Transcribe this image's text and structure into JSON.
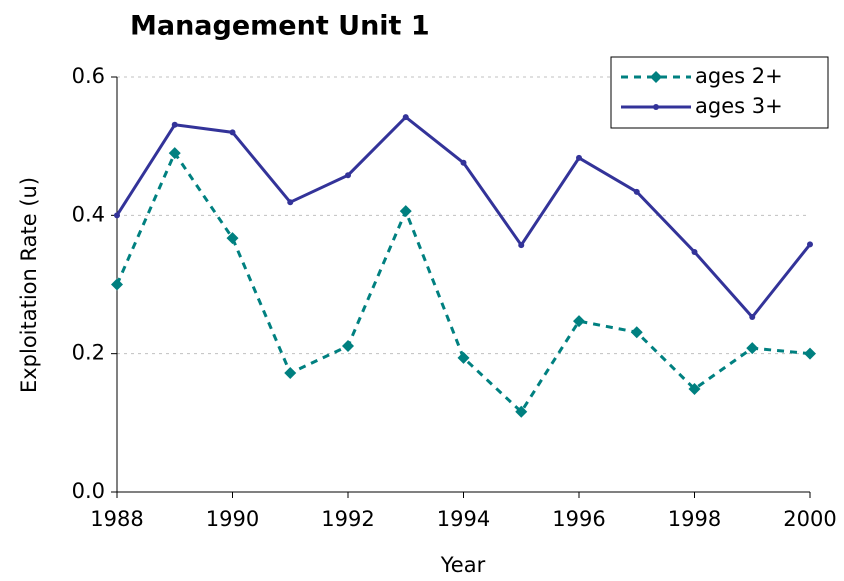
{
  "chart_data": {
    "type": "line",
    "title": "Management Unit 1",
    "x_label": "Year",
    "y_label": "Exploitation Rate (u)",
    "x": [
      1988,
      1989,
      1990,
      1991,
      1992,
      1993,
      1994,
      1995,
      1996,
      1997,
      1998,
      1999,
      2000
    ],
    "series": [
      {
        "name": "ages 2+",
        "color": "#008080",
        "dashed": true,
        "marker": "diamond",
        "values": [
          0.3,
          0.49,
          0.367,
          0.172,
          0.211,
          0.406,
          0.194,
          0.116,
          0.247,
          0.231,
          0.149,
          0.208,
          0.2
        ]
      },
      {
        "name": "ages 3+",
        "color": "#333399",
        "dashed": false,
        "marker": "circle",
        "values": [
          0.4,
          0.531,
          0.52,
          0.419,
          0.458,
          0.542,
          0.476,
          0.357,
          0.483,
          0.434,
          0.347,
          0.253,
          0.358
        ]
      }
    ],
    "xlim": [
      1988,
      2000
    ],
    "xticks": [
      1988,
      1990,
      1992,
      1994,
      1996,
      1998,
      2000
    ],
    "ylim": [
      0,
      0.6
    ],
    "yticks": [
      {
        "value": 0,
        "label": "0.0"
      },
      0.2,
      0.4,
      0.6
    ],
    "grid": true,
    "legend": "upper right"
  }
}
